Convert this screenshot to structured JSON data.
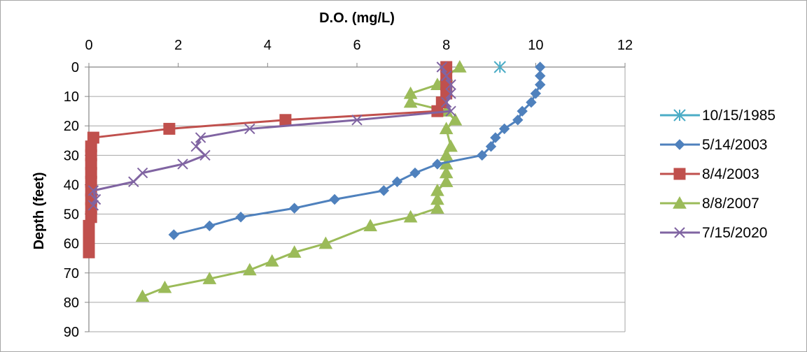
{
  "chart_data": {
    "type": "scatter",
    "title": "D.O. (mg/L)",
    "xlabel": "D.O. (mg/L)",
    "ylabel": "Depth (feet)",
    "xlim": [
      0,
      12
    ],
    "ylim": [
      90,
      0
    ],
    "x_axis_position": "top",
    "y_axis_reversed": true,
    "xticks": [
      "0",
      "2",
      "4",
      "6",
      "8",
      "10",
      "12"
    ],
    "yticks": [
      "0",
      "10",
      "20",
      "30",
      "40",
      "50",
      "60",
      "70",
      "80",
      "90"
    ],
    "grid": "horizontal",
    "legend_position": "right",
    "series": [
      {
        "name": "10/15/1985",
        "color": "#4bacc6",
        "marker": "asterisk",
        "points": [
          [
            9.2,
            0
          ]
        ]
      },
      {
        "name": "5/14/2003",
        "color": "#4f81bd",
        "marker": "diamond",
        "points": [
          [
            10.1,
            0
          ],
          [
            10.1,
            3
          ],
          [
            10.1,
            6
          ],
          [
            10.0,
            9
          ],
          [
            9.9,
            12
          ],
          [
            9.7,
            15
          ],
          [
            9.6,
            18
          ],
          [
            9.3,
            21
          ],
          [
            9.1,
            24
          ],
          [
            9.0,
            27
          ],
          [
            8.8,
            30
          ],
          [
            7.8,
            33
          ],
          [
            7.3,
            36
          ],
          [
            6.9,
            39
          ],
          [
            6.6,
            42
          ],
          [
            5.5,
            45
          ],
          [
            4.6,
            48
          ],
          [
            3.4,
            51
          ],
          [
            2.7,
            54
          ],
          [
            1.9,
            57
          ]
        ]
      },
      {
        "name": "8/4/2003",
        "color": "#c0504d",
        "marker": "square",
        "points": [
          [
            8.0,
            0
          ],
          [
            8.0,
            3
          ],
          [
            8.0,
            6
          ],
          [
            8.0,
            9
          ],
          [
            7.9,
            12
          ],
          [
            7.8,
            15
          ],
          [
            4.4,
            18
          ],
          [
            1.8,
            21
          ],
          [
            0.1,
            24
          ],
          [
            0.05,
            27
          ],
          [
            0.05,
            30
          ],
          [
            0.05,
            33
          ],
          [
            0.05,
            36
          ],
          [
            0.05,
            39
          ],
          [
            0.05,
            42
          ],
          [
            0.05,
            45
          ],
          [
            0.05,
            48
          ],
          [
            0.05,
            51
          ],
          [
            0.0,
            54
          ],
          [
            0.0,
            57
          ],
          [
            0.0,
            60
          ],
          [
            0.0,
            63
          ]
        ]
      },
      {
        "name": "8/8/2007",
        "color": "#9bbb59",
        "marker": "triangle",
        "points": [
          [
            8.3,
            0
          ],
          [
            8.0,
            3
          ],
          [
            7.8,
            6
          ],
          [
            7.2,
            9
          ],
          [
            7.2,
            12
          ],
          [
            8.0,
            15
          ],
          [
            8.2,
            18
          ],
          [
            8.0,
            21
          ],
          [
            8.1,
            27
          ],
          [
            8.0,
            30
          ],
          [
            8.0,
            33
          ],
          [
            8.0,
            36
          ],
          [
            8.0,
            39
          ],
          [
            7.8,
            42
          ],
          [
            7.8,
            45
          ],
          [
            7.8,
            48
          ],
          [
            7.2,
            51
          ],
          [
            6.3,
            54
          ],
          [
            5.3,
            60
          ],
          [
            4.6,
            63
          ],
          [
            4.1,
            66
          ],
          [
            3.6,
            69
          ],
          [
            2.7,
            72
          ],
          [
            1.7,
            75
          ],
          [
            1.2,
            78
          ]
        ]
      },
      {
        "name": "7/15/2020",
        "color": "#8064a2",
        "marker": "x",
        "points": [
          [
            7.9,
            0
          ],
          [
            8.0,
            3
          ],
          [
            8.1,
            6
          ],
          [
            8.1,
            9
          ],
          [
            8.0,
            12
          ],
          [
            8.1,
            15
          ],
          [
            6.0,
            18
          ],
          [
            3.6,
            21
          ],
          [
            2.5,
            24
          ],
          [
            2.4,
            27
          ],
          [
            2.6,
            30
          ],
          [
            2.1,
            33
          ],
          [
            1.2,
            36
          ],
          [
            1.0,
            39
          ],
          [
            0.1,
            42
          ],
          [
            0.15,
            45
          ],
          [
            0.1,
            47
          ]
        ]
      }
    ]
  }
}
